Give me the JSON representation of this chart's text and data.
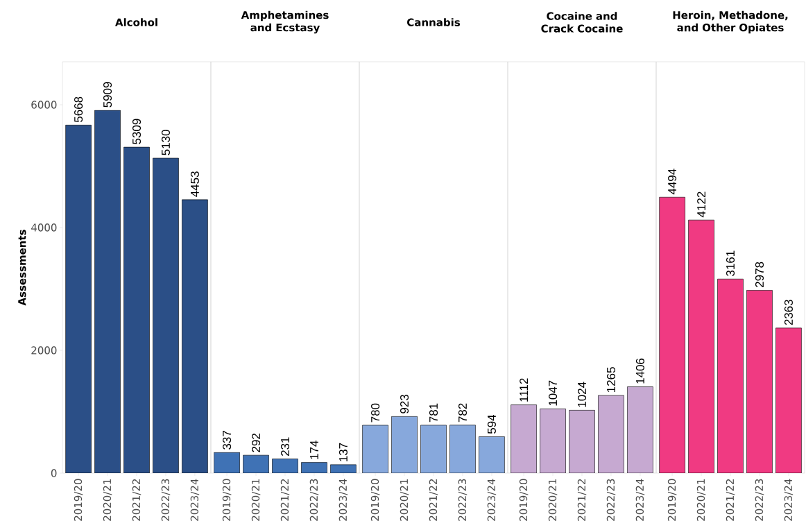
{
  "chart_data": [
    {
      "type": "bar",
      "title": "Alcohol",
      "ylabel": "Assessments",
      "categories": [
        "2019/20",
        "2020/21",
        "2021/22",
        "2022/23",
        "2023/24"
      ],
      "values": [
        5668,
        5909,
        5309,
        5130,
        4453
      ],
      "color": "#2b4f87",
      "ylim": [
        0,
        6700
      ],
      "yticks": [
        0,
        2000,
        4000,
        6000
      ],
      "data_labels": true
    },
    {
      "type": "bar",
      "title": "Amphetamines and Ecstasy",
      "categories": [
        "2019/20",
        "2020/21",
        "2021/22",
        "2022/23",
        "2023/24"
      ],
      "values": [
        337,
        292,
        231,
        174,
        137
      ],
      "color": "#3f72b5",
      "ylim": [
        0,
        6700
      ],
      "tick_labels": "x",
      "data_labels": true
    },
    {
      "type": "bar",
      "title": "Cannabis",
      "categories": [
        "2019/20",
        "2020/21",
        "2021/22",
        "2022/23",
        "2023/24"
      ],
      "values": [
        780,
        923,
        781,
        782,
        594
      ],
      "color": "#87a8dc",
      "ylim": [
        0,
        6700
      ],
      "tick_labels": "x",
      "data_labels": true
    },
    {
      "type": "bar",
      "title": "Cocaine and Crack Cocaine",
      "categories": [
        "2019/20",
        "2020/21",
        "2021/22",
        "2022/23",
        "2023/24"
      ],
      "values": [
        1112,
        1047,
        1024,
        1265,
        1406
      ],
      "color": "#c6a9d1",
      "ylim": [
        0,
        6700
      ],
      "tick_labels": "x",
      "data_labels": true
    },
    {
      "type": "bar",
      "title": "Heroin, Methadone, and Other Opiates",
      "categories": [
        "2019/20",
        "2020/21",
        "2021/22",
        "2022/23",
        "2023/24"
      ],
      "values": [
        4494,
        4122,
        3161,
        2978,
        2363
      ],
      "color": "#f03a82",
      "ylim": [
        0,
        6700
      ],
      "tick_labels": "x",
      "data_labels": true
    }
  ]
}
